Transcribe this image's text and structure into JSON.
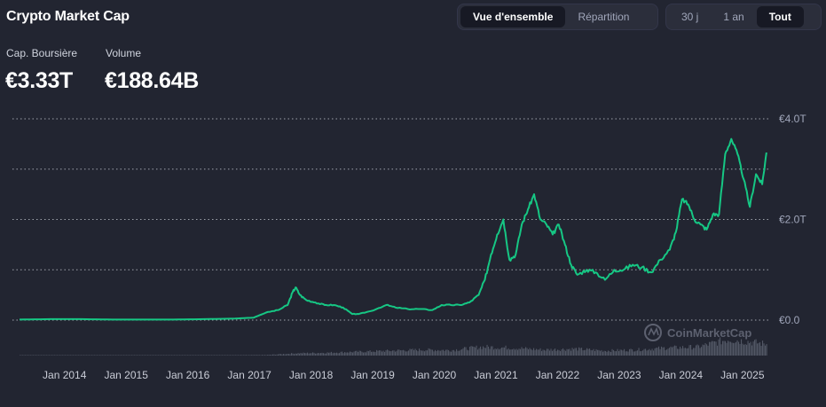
{
  "header": {
    "title": "Crypto Market Cap",
    "view_tabs": [
      "Vue d'ensemble",
      "Répartition"
    ],
    "range_tabs": [
      "30 j",
      "1 an",
      "Tout"
    ]
  },
  "metrics": {
    "market_cap_label": "Cap. Boursière",
    "market_cap_value": "€3.33T",
    "volume_label": "Volume",
    "volume_value": "€188.64B"
  },
  "watermark": "CoinMarketCap",
  "colors": {
    "line": "#16c784",
    "background": "#222531",
    "grid": "#c8ccd6",
    "volume": "#585d6b"
  },
  "chart_data": {
    "type": "line",
    "title": "",
    "xlabel": "",
    "ylabel": "",
    "ylim": [
      0,
      4.0
    ],
    "xlim": [
      2013.5,
      2025.65
    ],
    "y_ticks": [
      {
        "value": 0,
        "label": "€0.0"
      },
      {
        "value": 2.0,
        "label": "€2.0T"
      },
      {
        "value": 4.0,
        "label": "€4.0T"
      }
    ],
    "y_gridlines": [
      0,
      1.0,
      2.0,
      3.0,
      4.0
    ],
    "x_ticks": [
      {
        "value": 2014,
        "label": "Jan 2014"
      },
      {
        "value": 2015,
        "label": "Jan 2015"
      },
      {
        "value": 2016,
        "label": "Jan 2016"
      },
      {
        "value": 2017,
        "label": "Jan 2017"
      },
      {
        "value": 2018,
        "label": "Jan 2018"
      },
      {
        "value": 2019,
        "label": "Jan 2019"
      },
      {
        "value": 2020,
        "label": "Jan 2020"
      },
      {
        "value": 2021,
        "label": "Jan 2021"
      },
      {
        "value": 2022,
        "label": "Jan 2022"
      },
      {
        "value": 2023,
        "label": "Jan 2023"
      },
      {
        "value": 2024,
        "label": "Jan 2024"
      },
      {
        "value": 2025,
        "label": "Jan 2025"
      }
    ],
    "series": [
      {
        "name": "Market Cap",
        "unit": "€T",
        "x": [
          2013.5,
          2014.0,
          2014.5,
          2015.0,
          2015.5,
          2016.0,
          2016.5,
          2017.0,
          2017.3,
          2017.5,
          2017.7,
          2017.85,
          2017.93,
          2017.98,
          2018.05,
          2018.15,
          2018.3,
          2018.45,
          2018.6,
          2018.75,
          2018.9,
          2019.0,
          2019.2,
          2019.45,
          2019.6,
          2019.8,
          2020.0,
          2020.2,
          2020.35,
          2020.5,
          2020.65,
          2020.8,
          2020.95,
          2021.05,
          2021.15,
          2021.25,
          2021.35,
          2021.45,
          2021.55,
          2021.65,
          2021.75,
          2021.85,
          2021.95,
          2022.05,
          2022.15,
          2022.25,
          2022.35,
          2022.45,
          2022.55,
          2022.7,
          2022.85,
          2023.0,
          2023.15,
          2023.3,
          2023.45,
          2023.6,
          2023.75,
          2023.9,
          2024.05,
          2024.15,
          2024.25,
          2024.35,
          2024.45,
          2024.55,
          2024.65,
          2024.75,
          2024.85,
          2024.95,
          2025.05,
          2025.15,
          2025.25,
          2025.35,
          2025.45,
          2025.55,
          2025.62
        ],
        "y": [
          0.01,
          0.02,
          0.02,
          0.01,
          0.01,
          0.01,
          0.02,
          0.03,
          0.05,
          0.15,
          0.2,
          0.3,
          0.55,
          0.65,
          0.5,
          0.4,
          0.35,
          0.3,
          0.3,
          0.25,
          0.12,
          0.12,
          0.18,
          0.3,
          0.25,
          0.22,
          0.22,
          0.2,
          0.3,
          0.3,
          0.3,
          0.35,
          0.5,
          0.8,
          1.3,
          1.7,
          2.0,
          1.2,
          1.3,
          1.9,
          2.2,
          2.5,
          2.0,
          1.9,
          1.7,
          1.9,
          1.5,
          1.1,
          0.9,
          1.0,
          0.95,
          0.8,
          1.0,
          1.0,
          1.1,
          1.05,
          0.95,
          1.2,
          1.4,
          1.75,
          2.4,
          2.3,
          2.0,
          1.9,
          1.8,
          2.1,
          2.1,
          3.3,
          3.6,
          3.3,
          2.8,
          2.25,
          2.9,
          2.7,
          3.33
        ]
      },
      {
        "name": "Volume",
        "unit": "relative",
        "x": [
          2013.5,
          2014.0,
          2015.0,
          2016.0,
          2017.0,
          2017.5,
          2018.0,
          2018.5,
          2019.0,
          2019.5,
          2020.0,
          2020.5,
          2021.0,
          2021.5,
          2022.0,
          2022.5,
          2023.0,
          2023.5,
          2024.0,
          2024.5,
          2025.0,
          2025.62
        ],
        "y": [
          0.0,
          0.0,
          0.0,
          0.01,
          0.02,
          0.03,
          0.12,
          0.15,
          0.2,
          0.25,
          0.3,
          0.28,
          0.45,
          0.4,
          0.3,
          0.35,
          0.25,
          0.3,
          0.4,
          0.45,
          0.85,
          0.6
        ]
      }
    ]
  }
}
